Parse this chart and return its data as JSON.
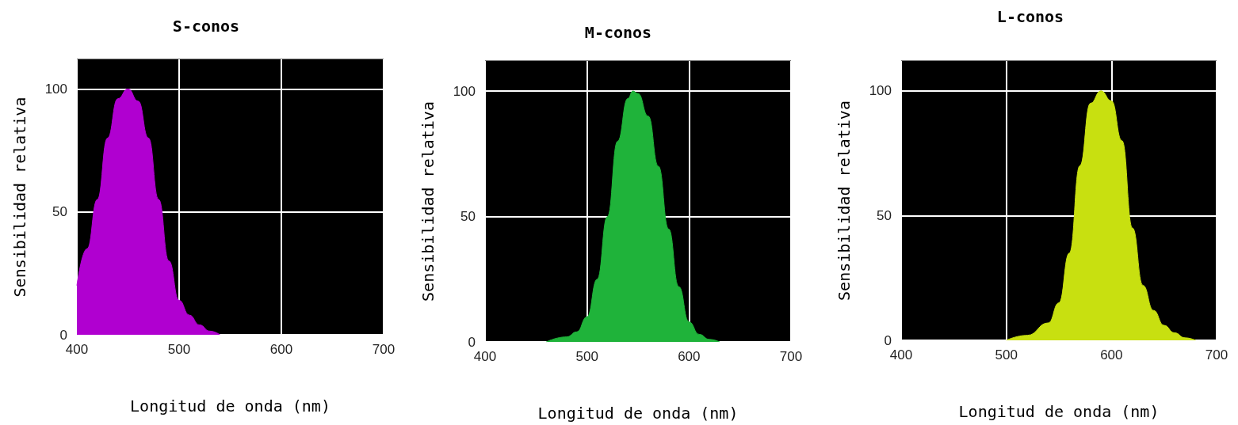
{
  "chart_data": [
    {
      "type": "area",
      "title": "S-conos",
      "xlabel": "Longitud de onda (nm)",
      "ylabel": "Sensibilidad relativa",
      "xlim": [
        400,
        700
      ],
      "xticks": [
        400,
        500,
        600,
        700
      ],
      "ylim": [
        0,
        112
      ],
      "yticks": [
        0,
        50,
        100
      ],
      "grid": true,
      "x": [
        400,
        410,
        420,
        430,
        440,
        450,
        460,
        470,
        480,
        490,
        500,
        510,
        520,
        530,
        540
      ],
      "series": [
        {
          "color": "#b000d0",
          "values": [
            20,
            35,
            55,
            80,
            96,
            100,
            95,
            80,
            55,
            30,
            14,
            8,
            4,
            1.5,
            0
          ]
        }
      ]
    },
    {
      "type": "area",
      "title": "M-conos",
      "xlabel": "Longitud de onda (nm)",
      "ylabel": "Sensibilidad relativa",
      "xlim": [
        400,
        700
      ],
      "xticks": [
        400,
        500,
        600,
        700
      ],
      "ylim": [
        0,
        112
      ],
      "yticks": [
        0,
        50,
        100
      ],
      "grid": true,
      "x": [
        460,
        480,
        490,
        500,
        510,
        520,
        530,
        540,
        545,
        550,
        560,
        570,
        580,
        590,
        600,
        610,
        620,
        630
      ],
      "series": [
        {
          "color": "#1fb33a",
          "values": [
            0,
            2,
            4,
            10,
            25,
            50,
            80,
            97,
            100,
            99,
            90,
            70,
            45,
            22,
            8,
            3,
            1,
            0
          ]
        }
      ]
    },
    {
      "type": "area",
      "title": "L-conos",
      "xlabel": "Longitud de onda (nm)",
      "ylabel": "Sensibilidad relativa",
      "xlim": [
        400,
        700
      ],
      "xticks": [
        400,
        500,
        600,
        700
      ],
      "ylim": [
        0,
        112
      ],
      "yticks": [
        0,
        50,
        100
      ],
      "grid": true,
      "x": [
        500,
        520,
        540,
        550,
        560,
        570,
        580,
        590,
        600,
        610,
        620,
        630,
        640,
        650,
        660,
        670,
        680
      ],
      "series": [
        {
          "color": "#c8e010",
          "values": [
            0,
            2,
            7,
            15,
            35,
            70,
            95,
            100,
            96,
            80,
            45,
            22,
            12,
            6,
            3,
            1,
            0
          ]
        }
      ]
    }
  ]
}
